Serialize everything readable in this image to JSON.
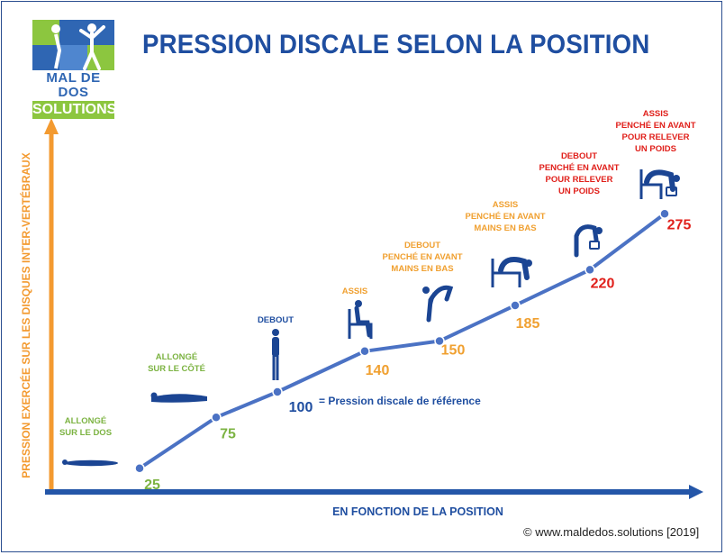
{
  "title": "PRESSION DISCALE SELON LA POSITION",
  "logo": {
    "name": "MAL DE DOS",
    "sub": "SOLUTIONS"
  },
  "footer": "© www.maldedos.solutions [2019]",
  "reference_note": "= Pression discale de référence",
  "colors": {
    "line": "#4b72c4",
    "green": "#7cb342",
    "orange": "#f0a030",
    "red": "#e0201b",
    "dark": "#1f4ea0",
    "y_axis": "#f39a30",
    "x_axis": "#2456a8"
  },
  "chart_data": {
    "type": "line",
    "title": "PRESSION DISCALE SELON LA POSITION",
    "xlabel": "EN FONCTION DE LA POSITION",
    "ylabel": "PRESSION EXERCÉE SUR LES DISQUES INTER-VERTÉBRAUX",
    "categories": [
      [
        "ALLONGÉ",
        "SUR LE DOS"
      ],
      [
        "ALLONGÉ",
        "SUR LE CÔTÉ"
      ],
      [
        "DEBOUT"
      ],
      [
        "ASSIS"
      ],
      [
        "DEBOUT",
        "PENCHÉ EN AVANT",
        "MAINS EN BAS"
      ],
      [
        "ASSIS",
        "PENCHÉ EN AVANT",
        "MAINS EN BAS"
      ],
      [
        "DEBOUT",
        "PENCHÉ EN AVANT",
        "POUR RELEVER",
        "UN POIDS"
      ],
      [
        "ASSIS",
        "PENCHÉ EN AVANT",
        "POUR RELEVER",
        "UN POIDS"
      ]
    ],
    "values": [
      25,
      75,
      100,
      140,
      150,
      185,
      220,
      275
    ],
    "value_colors": [
      "green",
      "green",
      "dark",
      "orange",
      "orange",
      "orange",
      "red",
      "red"
    ],
    "category_colors": [
      "green",
      "green",
      "dark",
      "orange",
      "orange",
      "orange",
      "red",
      "red"
    ],
    "icons": [
      "lying-back-icon",
      "lying-side-icon",
      "standing-icon",
      "sitting-icon",
      "standing-bent-icon",
      "sitting-bent-icon",
      "standing-lifting-icon",
      "sitting-lifting-icon"
    ],
    "grid": false,
    "legend": false
  }
}
